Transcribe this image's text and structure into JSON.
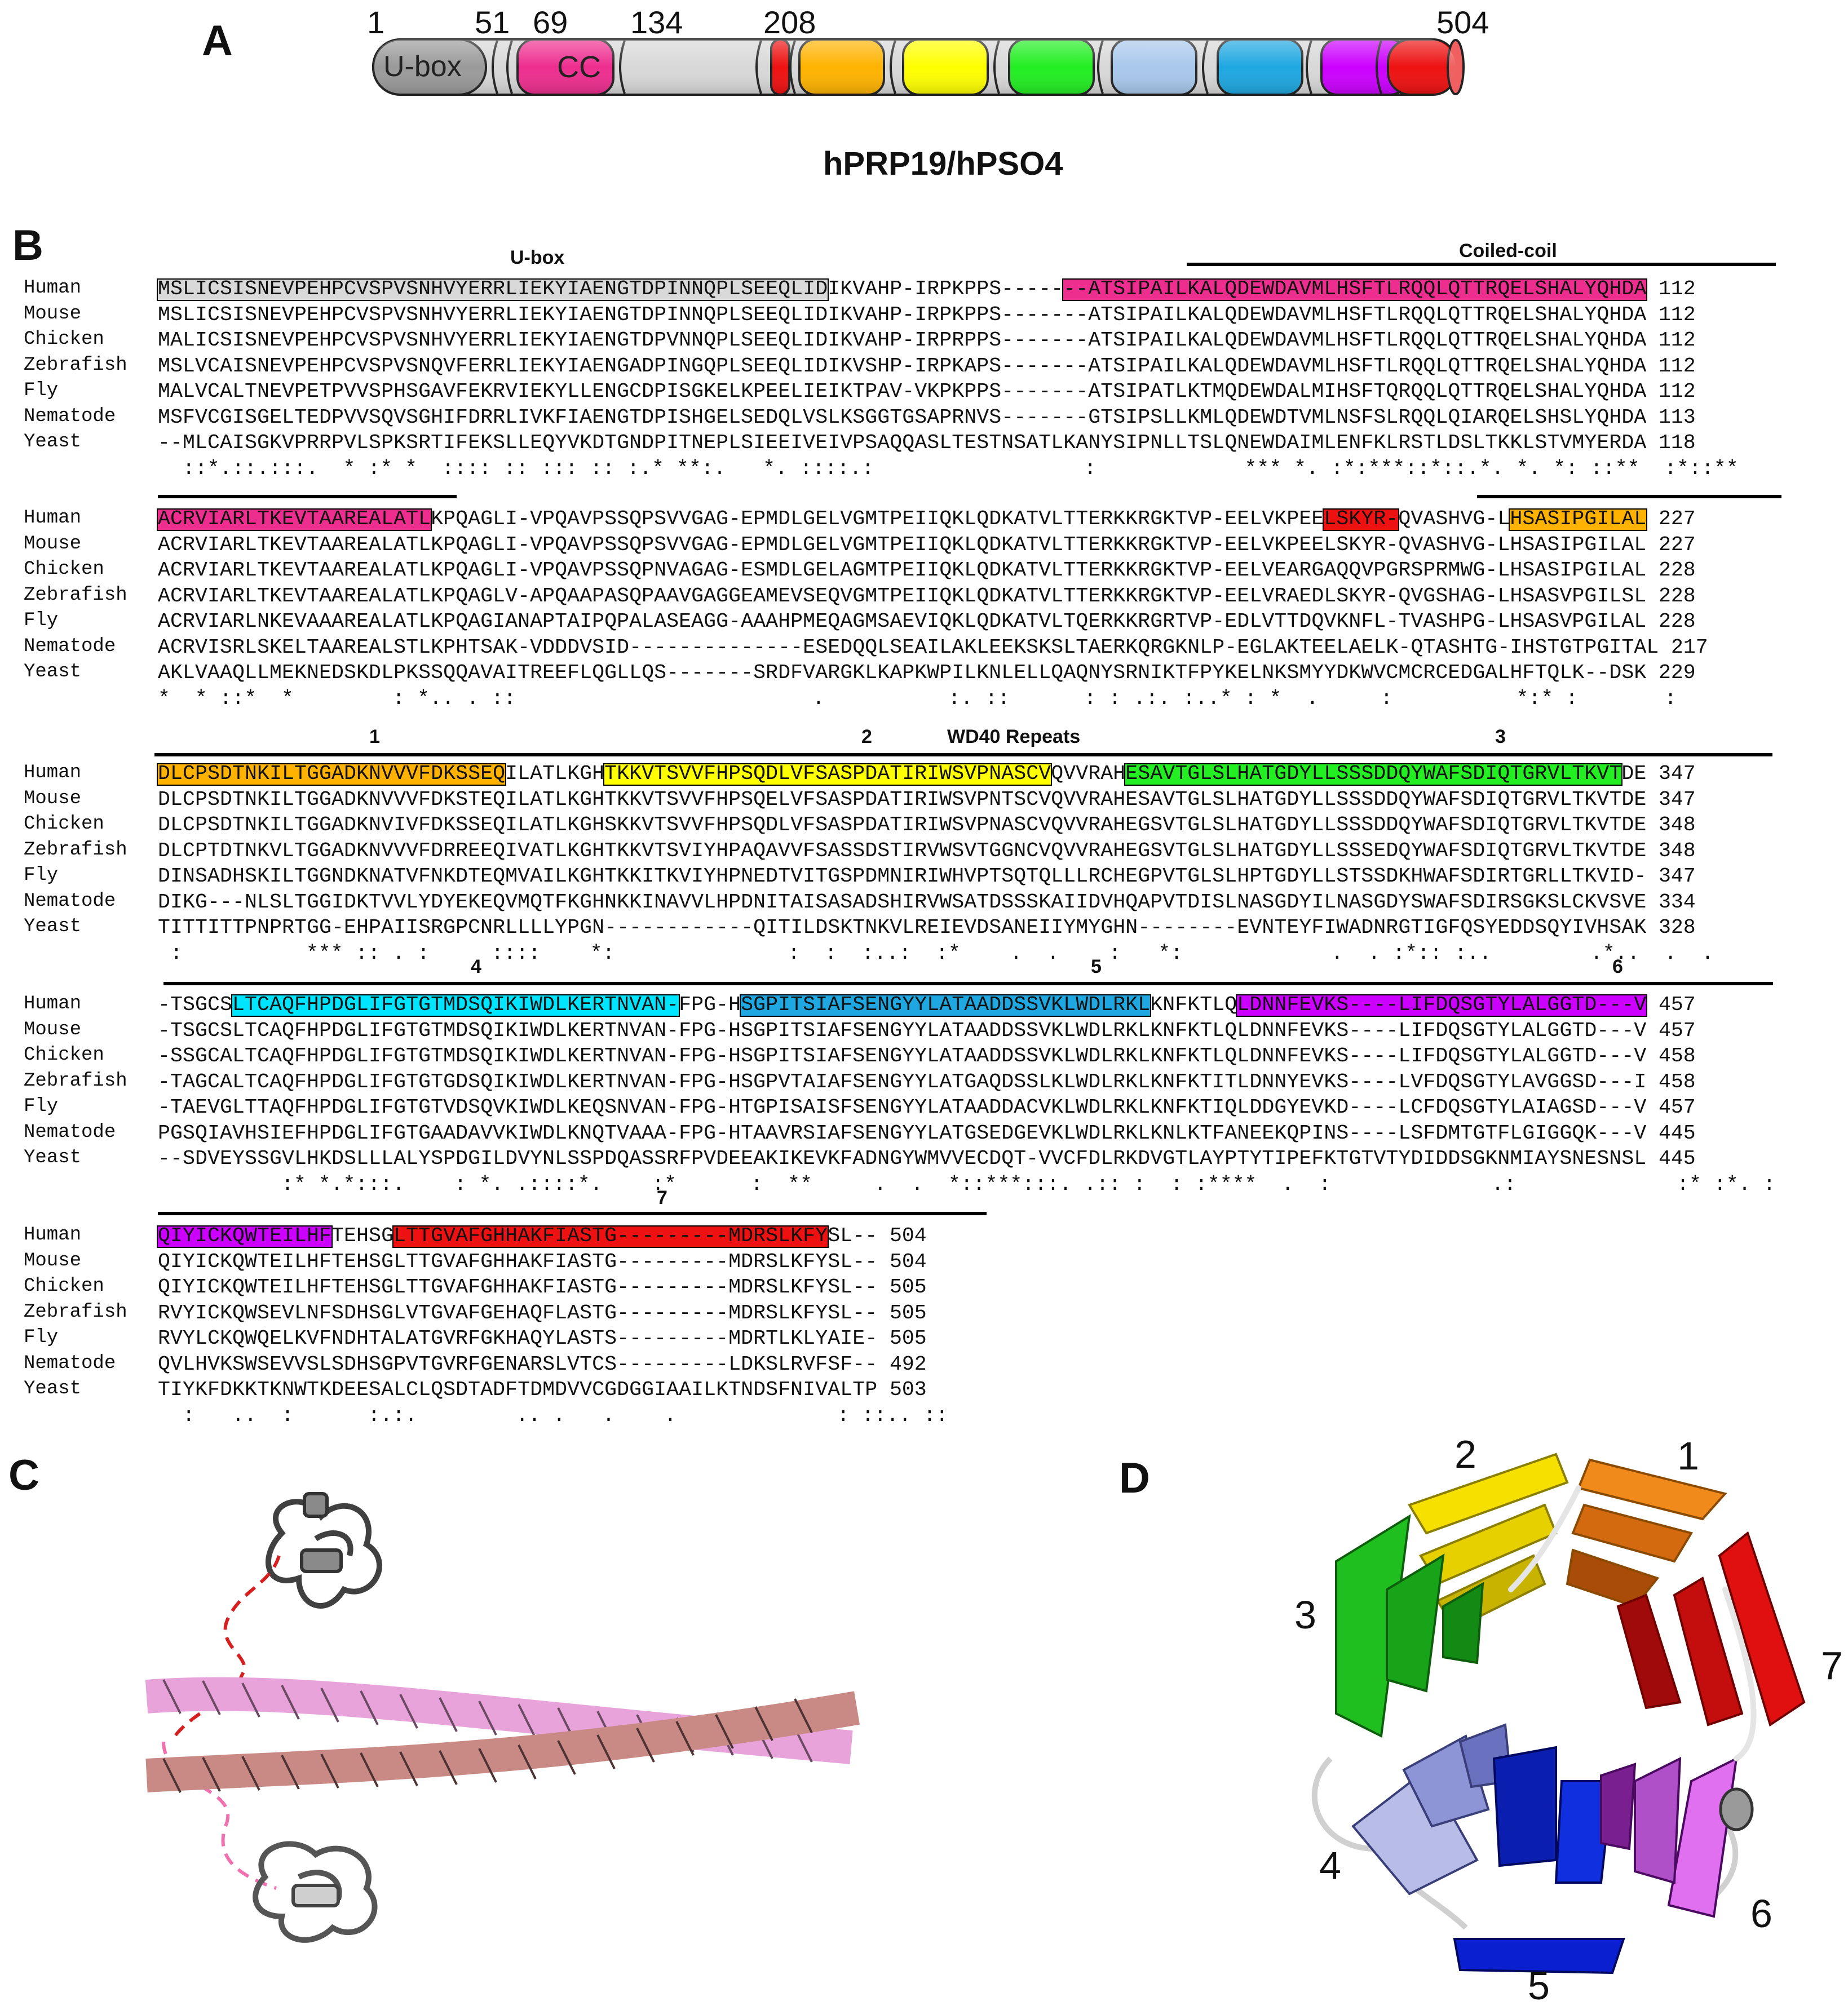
{
  "panels": {
    "a": "A",
    "b": "B",
    "c": "C",
    "d": "D"
  },
  "domain_map": {
    "positions": [
      "1",
      "51",
      "69",
      "134",
      "208",
      "504"
    ],
    "ubox_label": "U-box",
    "cc_label": "CC",
    "title": "hPRP19/hPSO4",
    "colors": {
      "ubox": "#9a9a9a",
      "cc": "#ee2e8f",
      "wd1": "#ffb300",
      "wd2": "#ffff00",
      "wd3": "#22ee22",
      "wd4": "#a9c8ec",
      "wd5": "#1ea7e1",
      "wd6": "#cc00ff",
      "wd7": "#ee1111",
      "linker": "#d8d8d8"
    }
  },
  "alignment": {
    "headers": {
      "ubox": "U-box",
      "cc": "Coiled-coil",
      "wd": "WD40 Repeats",
      "r1": "1",
      "r2": "2",
      "r3": "3",
      "r4": "4",
      "r5": "5",
      "r6": "6",
      "r7": "7"
    },
    "species": [
      "Human",
      "Mouse",
      "Chicken",
      "Zebrafish",
      "Fly",
      "Nematode",
      "Yeast"
    ],
    "blocks": [
      {
        "rows": [
          "MSLICSISNEVPEHPCVSPVSNHVYERRLIEKYIAENGTDPINNQPLSEEQLIDIKVAHP-IRPKPPS-------ATSIPAILKALQDEWDAVMLHSFTLRQQLQTTRQELSHALYQHDA",
          "MSLICSISNEVPEHPCVSPVSNHVYERRLIEKYIAENGTDPINNQPLSEEQLIDIKVAHP-IRPKPPS-------ATSIPAILKALQDEWDAVMLHSFTLRQQLQTTRQELSHALYQHDA",
          "MALICSISNEVPEHPCVSPVSNHVYERRLIEKYIAENGTDPVNNQPLSEEQLIDIKVAHP-IRPRPPS-------ATSIPAILKALQDEWDAVMLHSFTLRQQLQTTRQELSHALYQHDA",
          "MSLVCAISNEVPEHPCVSPVSNQVFERRLIEKYIAENGADPINGQPLSEEQLIDIKVSHP-IRPKAPS-------ATSIPAILKALQDEWDAVMLHSFTLRQQLQTTRQELSHALYQHDA",
          "MALVCALTNEVPETPVVSPHSGAVFEKRVIEKYLLENGCDPISGKELKPEELIEIKTPAV-VKPKPPS-------ATSIPATLKTMQDEWDALMIHSFTQRQQLQTTRQELSHALYQHDA",
          "MSFVCGISGELTEDPVVSQVSGHIFDRRLIVKFIAENGTDPISHGELSEDQLVSLKSGGTGSAPRNVS-------GTSIPSLLKMLQDEWDTVMLNSFSLRQQLQIARQELSHSLYQHDA",
          "--MLCAISGKVPRRPVLSPKSRTIFEKSLLEQYVKDTGNDPITNEPLSIEEIVEIVPSAQQASLTESTNSATLKANYSIPNLLTSLQNEWDAIMLENFKLRSTLDSLTKKLSTVMYERDA"
        ],
        "nums": [
          "112",
          "112",
          "112",
          "112",
          "112",
          "113",
          "118"
        ],
        "cons": "  ::*.::.:::.  * :* *  :::: :: ::: :: :.* **:.   *. ::::.:                 :            *** *. :*:***::*::.*. *. *: ::**  :*::**"
      },
      {
        "rows": [
          "ACRVIARLTKEVTAAREALATLKPQAGLI-VPQAVPSSQPSVVGAG-EPMDLGELVGMTPEIIQKLQDKATVLTTERKKRGKTVP-EELVKPEELSKYR-QVASHVG-LHSASIPGILAL",
          "ACRVIARLTKEVTAAREALATLKPQAGLI-VPQAVPSSQPSVVGAG-EPMDLGELVGMTPEIIQKLQDKATVLTTERKKRGKTVP-EELVKPEELSKYR-QVASHVG-LHSASIPGILAL",
          "ACRVIARLTKEVTAAREALATLKPQAGLI-VPQAVPSSQPNVAGAG-ESMDLGELAGMTPEIIQKLQDKATVLTTERKKRGKTVP-EELVEARGAQQVPGRSPRMWG-LHSASIPGILAL",
          "ACRVIARLTKEVTAAREALATLKPQAGLV-APQAAPASQPAAVGAGGEAMEVSEQVGMTPEIIQKLQDKATVLTTERKKRGKTVP-EELVRAEDLSKYR-QVGSHAG-LHSASVPGILSL",
          "ACRVIARLNKEVAAAREALATLKPQAGIANAPTAIPQPALASEAGG-AAAHPMEQAGMSAEVIQKLQDKATVLTQERKKRGRTVP-EDLVTTDQVKNFL-TVASHPG-LHSASVPGILAL",
          "ACRVISRLSKELTAAREALSTLKPHTSAK-VDDDVSID--------------ESEDQQLSEAILAKLEEKSKSLTAERKQRGKNLP-EGLAKTEELAELK-QTASHTG-IHSTGTPGITAL",
          "AKLVAAQLLMEKNEDSKDLPKSSQQAVAITREEFLQGLLQS-------SRDFVARGKLKAPKWPILKNLELLQAQNYSRNIKTFPYKELNKSMYYDKWVCMCRCEDGALHFTQLK--DSK"
        ],
        "nums": [
          "227",
          "227",
          "228",
          "228",
          "228",
          "217",
          "229"
        ],
        "cons": "*  * ::*  *        : *.. . ::                        .          :. ::      : : .:. :..* : *  .     :          *:* :       :"
      },
      {
        "rows": [
          "DLCPSDTNKILTGGADKNVVVFDKSSEQILATLKGHTKKVTSVVFHPSQDLVFSASPDATIRIWSVPNASCVQVVRAHESAVTGLSLHATGDYLLSSSDDQYWAFSDIQTGRVLTKVTDE",
          "DLCPSDTNKILTGGADKNVVVFDKSTEQILATLKGHTKKVTSVVFHPSQELVFSASPDATIRIWSVPNTSCVQVVRAHESAVTGLSLHATGDYLLSSSDDQYWAFSDIQTGRVLTKVTDE",
          "DLCPSDTNKILTGGADKNVIVFDKSSEQILATLKGHSKKVTSVVFHPSQDLVFSASPDATIRIWSVPNASCVQVVRAHEGSVTGLSLHATGDYLLSSSDDQYWAFSDIQTGRVLTKVTDE",
          "DLCPTDTNKVLTGGADKNVVVFDRREEQIVATLKGHTKKVTSVIYHPAQAVVFSASSDSTIRVWSVTGGNCVQVVRAHEGSVTGLSLHATGDYLLSSSEDQYWAFSDIQTGRVLTKVTDE",
          "DINSADHSKILTGGNDKNATVFNKDTEQMVAILKGHTKKITKVIYHPNEDTVITGSPDMNIRIWHVPTSQTQLLLRCHEGPVTGLSLHPTGDYLLSTSSDKHWAFSDIRTGRLLTKVID-",
          "DIKG---NLSLTGGIDKTVVLYDYEKEQVMQTFKGHNKKINAVVLHPDNITAISASADSHIRVWSATDSSSKAIIDVHQAPVTDISLNASGDYILNASGDYSWAFSDIRSGKSLCKVSVE",
          "TITTITTPNPRTGG-EHPAIISRGPCNRLLLLYPGN------------QITILDSKTNKVLREIEVDSANEIIYMYGHN--------EVNTEYFIWADNRGTIGFQSYEDDSQYIVHSAK"
        ],
        "nums": [
          "347",
          "347",
          "348",
          "348",
          "347",
          "334",
          "328"
        ],
        "cons": " :          *** :: . :     ::::    *:              :  :  :..:  :*    .  .    :   *:            .  . :*:: :..        .*..  .  ."
      },
      {
        "rows": [
          "-TSGCSLTCAQFHPDGLIFGTGTMDSQIKIWDLKERTNVAN-FPG-HSGPITSIAFSENGYYLATAADDSSVKLWDLRKLKNFKTLQLDNNFEVKS----LIFDQSGTYLALGGTD---V",
          "-TSGCSLTCAQFHPDGLIFGTGTMDSQIKIWDLKERTNVAN-FPG-HSGPITSIAFSENGYYLATAADDSSVKLWDLRKLKNFKTLQLDNNFEVKS----LIFDQSGTYLALGGTD---V",
          "-SSGCALTCAQFHPDGLIFGTGTMDSQIKIWDLKERTNVAN-FPG-HSGPITSIAFSENGYYLATAADDSSVKLWDLRKLKNFKTLQLDNNFEVKS----LIFDQSGTYLALGGTD---V",
          "-TAGCALTCAQFHPDGLIFGTGTGDSQIKIWDLKERTNVAN-FPG-HSGPVTAIAFSENGYYLATGAQDSSLKLWDLRKLKNFKTITLDNNYEVKS----LVFDQSGTYLAVGGSD---I",
          "-TAEVGLTTAQFHPDGLIFGTGTVDSQVKIWDLKEQSNVAN-FPG-HTGPISAISFSENGYYLATAADDACVKLWDLRKLKNFKTIQLDDGYEVKD----LCFDQSGTYLAIAGSD---V",
          "PGSQIAVHSIEFHPDGLIFGTGAADAVVKIWDLKNQTVAAA-FPG-HTAAVRSIAFSENGYYLATGSEDGEVKLWDLRKLKNLKTFANEEKQPINS----LSFDMTGTFLGIGGQK---V",
          "--SDVEYSSGVLHKDSLLLALYSPDGILDVYNLSSPDQASSRFPVDEEAKIKEVKFADNGYWMVVECDQT-VVCFDLRKDVGTLAYPTYTIPEFKTGTVTYDIDDSGKNMIAYSNESNSL"
        ],
        "nums": [
          "457",
          "457",
          "458",
          "458",
          "457",
          "445",
          "445"
        ],
        "cons": "          :* *.*:::.    : *. .::::*.    :*      :  **     .  .  *::***:::. .:: :  : :****  .  :             .:             :* :*. :      :"
      },
      {
        "rows": [
          "QIYICKQWTEILHFTEHSGLTTGVAFGHHAKFIASTG---------MDRSLKFYSL--",
          "QIYICKQWTEILHFTEHSGLTTGVAFGHHAKFIASTG---------MDRSLKFYSL--",
          "QIYICKQWTEILHFTEHSGLTTGVAFGHHAKFIASTG---------MDRSLKFYSL--",
          "RVYICKQWSEVLNFSDHSGLVTGVAFGEHAQFLASTG---------MDRSLKFYSL--",
          "RVYLCKQWQELKVFNDHTALATGVRFGKHAQYLASTS---------MDRTLKLYAIE-",
          "QVLHVKSWSEVVSLSDHSGPVTGVRFGENARSLVTCS---------LDKSLRVFSF--",
          "TIYKFDKKTKNWTKDEESALCLQSDTADFTDMDVVCGDGGIAAILKTNDSFNIVALTP"
        ],
        "nums": [
          "504",
          "504",
          "505",
          "505",
          "505",
          "492",
          "503"
        ],
        "cons": "  :   ..  :      :.:.        .. .   .    .             : ::.. ::"
      }
    ]
  },
  "panel_c": {
    "colors": {
      "helix1": "#e8a3da",
      "helix2": "#c98a86",
      "ubox": "#8a8a8a",
      "link1": "#d61f1f",
      "link2": "#f070b0"
    }
  },
  "panel_d": {
    "labels": [
      "1",
      "2",
      "3",
      "4",
      "5",
      "6",
      "7"
    ],
    "colors": [
      "#f08a1a",
      "#f5e000",
      "#1fbf1f",
      "#8d95d6",
      "#0a1fd0",
      "#b050c8",
      "#e01010"
    ]
  }
}
